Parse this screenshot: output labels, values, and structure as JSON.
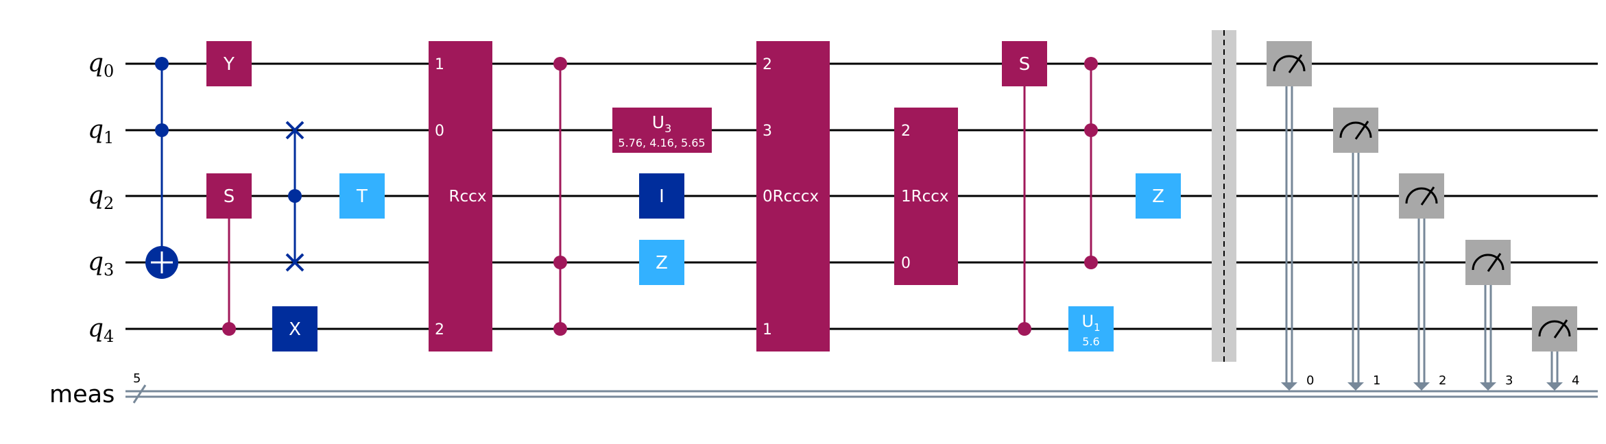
{
  "colors": {
    "purple": "#a0185a",
    "dark_blue": "#002d9c",
    "light_blue": "#33b1ff",
    "gray": "#a8a8a8",
    "barrier": "#cccccc",
    "classical": "#778899"
  },
  "qubits": [
    {
      "name": "q",
      "index": "0"
    },
    {
      "name": "q",
      "index": "1"
    },
    {
      "name": "q",
      "index": "2"
    },
    {
      "name": "q",
      "index": "3"
    },
    {
      "name": "q",
      "index": "4"
    }
  ],
  "classical": {
    "name": "meas",
    "width": "5",
    "bits": [
      "0",
      "1",
      "2",
      "3",
      "4"
    ]
  },
  "gates": {
    "y": "Y",
    "s1": "S",
    "x": "X",
    "t": "T",
    "rccx1": {
      "label": "Rccx",
      "pins": [
        "1",
        "0",
        "2"
      ]
    },
    "u3": {
      "label": "U",
      "sub": "3",
      "params": "5.76, 4.16, 5.65"
    },
    "i": "I",
    "z1": "Z",
    "rcccx": {
      "label": "0Rcccx",
      "pins": [
        "2",
        "3",
        "1"
      ]
    },
    "rccx2": {
      "label": "1Rccx",
      "pins": [
        "2",
        "0"
      ]
    },
    "s2": "S",
    "u1": {
      "label": "U",
      "sub": "1",
      "params": "5.6"
    },
    "z2": "Z"
  }
}
